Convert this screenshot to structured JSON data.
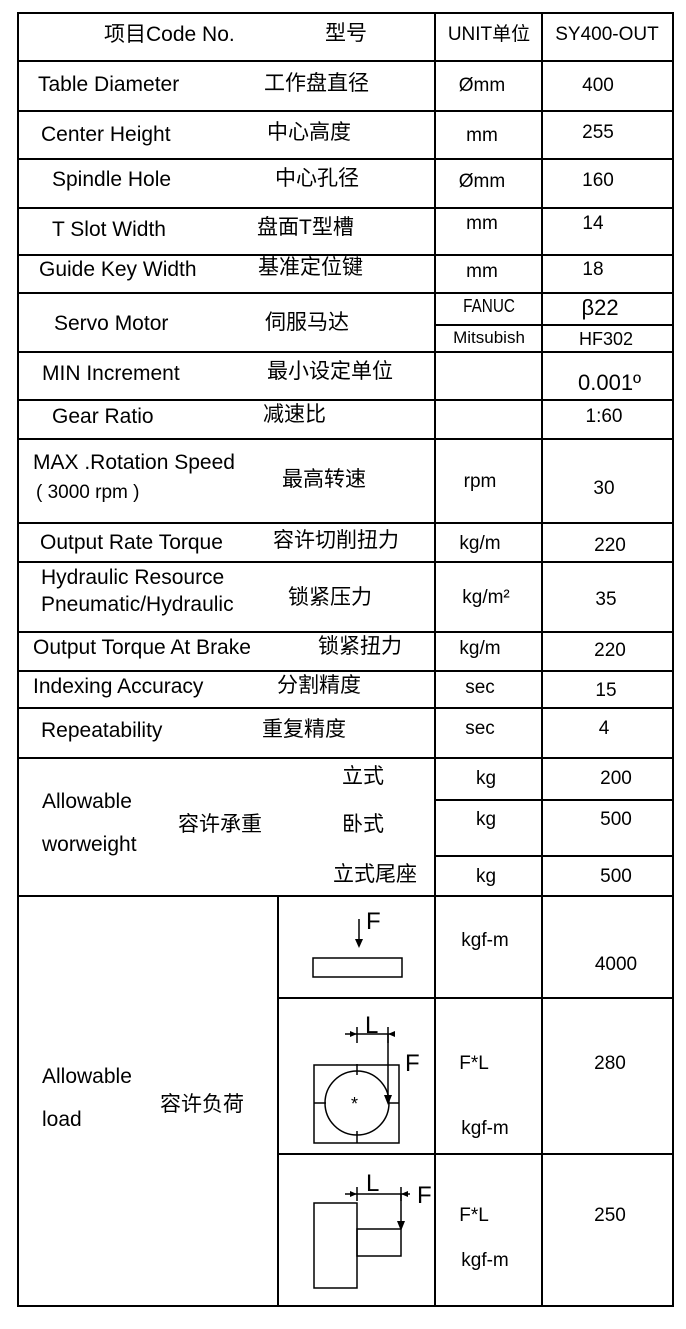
{
  "header": {
    "item": "项目Code No.",
    "model_cn": "型号",
    "unit": "UNIT单位",
    "model": "SY400-OUT"
  },
  "rows": [
    {
      "en": "Table Diameter",
      "cn": "工作盘直径",
      "unit": "Ømm",
      "value": "400"
    },
    {
      "en": "Center Height",
      "cn": "中心高度",
      "unit": "mm",
      "value": "255"
    },
    {
      "en": "Spindle Hole",
      "cn": "中心孔径",
      "unit": "Ømm",
      "value": "160"
    },
    {
      "en": "T Slot Width",
      "cn": "盘面T型槽",
      "unit": "mm",
      "value": "14"
    },
    {
      "en": "Guide Key Width",
      "cn": "基准定位键",
      "unit": "mm",
      "value": "18"
    },
    {
      "en": "Servo Motor",
      "cn": "伺服马达",
      "unit": "FANUC",
      "value": "β22",
      "unit2": "Mitsubish",
      "value2": "HF302"
    },
    {
      "en": "MIN Increment",
      "cn": "最小设定单位",
      "unit": "",
      "value": "0.001º"
    },
    {
      "en": "Gear Ratio",
      "cn": "减速比",
      "unit": "",
      "value": "1:60"
    },
    {
      "en": "MAX .Rotation Speed",
      "en2": "( 3000 rpm )",
      "cn": "最高转速",
      "unit": "rpm",
      "value": "30"
    },
    {
      "en": "Output Rate Torque",
      "cn": "容许切削扭力",
      "unit": "kg/m",
      "value": "220"
    },
    {
      "en": "Hydraulic Resource",
      "en2": "Pneumatic/Hydraulic",
      "cn": "锁紧压力",
      "unit": "kg/m²",
      "value": "35"
    },
    {
      "en": "Output Torque At Brake",
      "cn": "锁紧扭力",
      "unit": "kg/m",
      "value": "220"
    },
    {
      "en": "Indexing Accuracy",
      "cn": "分割精度",
      "unit": "sec",
      "value": "15"
    },
    {
      "en": "Repeatability",
      "cn": "重复精度",
      "unit": "sec",
      "value": "4"
    }
  ],
  "workload": {
    "en": "Allowable",
    "en2": "worweight",
    "cn": "容许承重",
    "items": [
      {
        "type": "立式",
        "unit": "kg",
        "value": "200"
      },
      {
        "type": "卧式",
        "unit": "kg",
        "value": "500"
      },
      {
        "type": "立式尾座",
        "unit": "kg",
        "value": "500"
      }
    ]
  },
  "load": {
    "en": "Allowable",
    "en2": "load",
    "cn": "容许负荷",
    "items": [
      {
        "diagram_label": "F",
        "unit": "kgf-m",
        "value": "4000"
      },
      {
        "diagram_label_l": "L",
        "diagram_label_f": "F",
        "unit": "F*L",
        "unit2": "kgf-m",
        "value": "280"
      },
      {
        "diagram_label_l": "L",
        "diagram_label_f": "F",
        "unit": "F*L",
        "unit2": "kgf-m",
        "value": "250"
      }
    ]
  }
}
